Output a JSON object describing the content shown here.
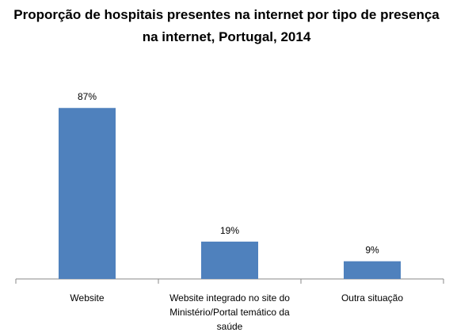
{
  "chart_data": {
    "type": "bar",
    "title": "Proporção de hospitais presentes na internet por tipo de presença na internet, Portugal, 2014",
    "categories": [
      "Website",
      "Website integrado no site do Ministério/Portal temático da saúde",
      "Outra situação"
    ],
    "values": [
      87,
      19,
      9
    ],
    "value_labels": [
      "87%",
      "19%",
      "9%"
    ],
    "color": "#4f81bd",
    "ylim": [
      0,
      100
    ]
  }
}
